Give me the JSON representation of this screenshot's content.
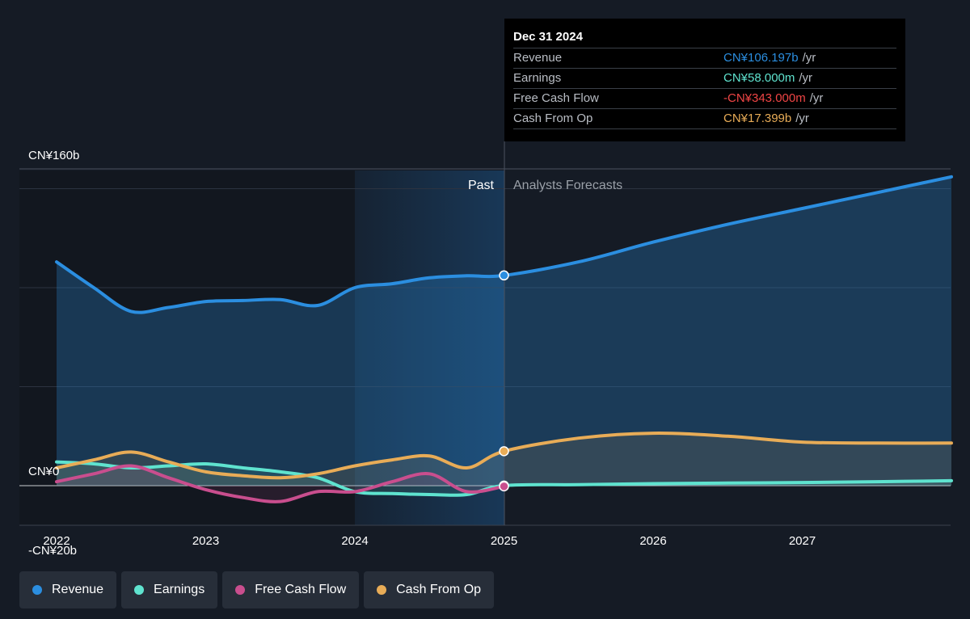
{
  "colors": {
    "revenue": "#2b8ee0",
    "earnings": "#5fe3cf",
    "fcf": "#c94e8e",
    "cfo": "#e8ac57",
    "negative": "#f04545"
  },
  "tooltip": {
    "date": "Dec 31 2024",
    "unit": "/yr",
    "rows": [
      {
        "label": "Revenue",
        "value": "CN¥106.197b"
      },
      {
        "label": "Earnings",
        "value": "CN¥58.000m"
      },
      {
        "label": "Free Cash Flow",
        "value": "-CN¥343.000m"
      },
      {
        "label": "Cash From Op",
        "value": "CN¥17.399b"
      }
    ]
  },
  "legend": [
    "Revenue",
    "Earnings",
    "Free Cash Flow",
    "Cash From Op"
  ],
  "chart_data": {
    "type": "line",
    "y_unit": "CN¥ billions",
    "ylim": [
      -20,
      160
    ],
    "y_tick_labels": [
      "CN¥160b",
      "CN¥0",
      "-CN¥20b"
    ],
    "x_tick_labels": [
      "2022",
      "2023",
      "2024",
      "2025",
      "2026",
      "2027"
    ],
    "divider_x": 2025.0,
    "zones": {
      "past": "Past",
      "forecast": "Analysts Forecasts"
    },
    "grid": true,
    "series": [
      {
        "name": "Revenue",
        "x": [
          2022.0,
          2022.25,
          2022.5,
          2022.75,
          2023.0,
          2023.25,
          2023.5,
          2023.75,
          2024.0,
          2024.25,
          2024.5,
          2024.75,
          2025.0,
          2025.5,
          2026.0,
          2026.5,
          2027.0,
          2027.5,
          2028.0
        ],
        "y": [
          113,
          100,
          88,
          90,
          93,
          93.5,
          94,
          91,
          100,
          102,
          105,
          106,
          106.2,
          113,
          123,
          132,
          140,
          148,
          156
        ]
      },
      {
        "name": "Earnings",
        "x": [
          2022.0,
          2022.25,
          2022.5,
          2022.75,
          2023.0,
          2023.25,
          2023.5,
          2023.75,
          2024.0,
          2024.25,
          2024.5,
          2024.75,
          2025.0,
          2025.5,
          2026.0,
          2026.5,
          2027.0,
          2027.5,
          2028.0
        ],
        "y": [
          12,
          11,
          9,
          10,
          11,
          9,
          7,
          4,
          -3,
          -4,
          -4.5,
          -4.5,
          0.058,
          0.5,
          1,
          1.3,
          1.6,
          2,
          2.5
        ]
      },
      {
        "name": "Free Cash Flow",
        "x": [
          2022.0,
          2022.25,
          2022.5,
          2022.75,
          2023.0,
          2023.25,
          2023.5,
          2023.75,
          2024.0,
          2024.25,
          2024.5,
          2024.75,
          2025.0
        ],
        "y": [
          2,
          6,
          10,
          4,
          -2,
          -6,
          -8,
          -3,
          -3,
          2,
          6,
          -3,
          -0.343
        ]
      },
      {
        "name": "Cash From Op",
        "x": [
          2022.0,
          2022.25,
          2022.5,
          2022.75,
          2023.0,
          2023.25,
          2023.5,
          2023.75,
          2024.0,
          2024.25,
          2024.5,
          2024.75,
          2025.0,
          2025.5,
          2026.0,
          2026.5,
          2027.0,
          2027.5,
          2028.0
        ],
        "y": [
          9,
          13,
          17,
          12,
          7,
          5,
          4,
          6,
          10,
          13,
          15,
          9,
          17.4,
          24,
          26.5,
          25,
          22,
          21.5,
          21.5
        ]
      }
    ]
  }
}
